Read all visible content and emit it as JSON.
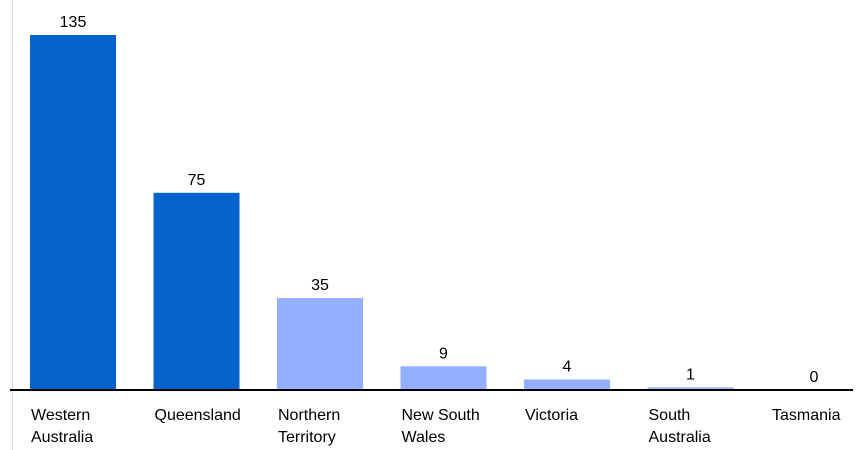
{
  "chart_data": {
    "type": "bar",
    "categories": [
      [
        "Western",
        "Australia"
      ],
      [
        "Queensland"
      ],
      [
        "Northern",
        "Territory"
      ],
      [
        "New South",
        "Wales"
      ],
      [
        "Victoria"
      ],
      [
        "South",
        "Australia"
      ],
      [
        "Tasmania"
      ]
    ],
    "values": [
      135,
      75,
      35,
      9,
      4,
      1,
      0
    ],
    "data_labels": [
      "135",
      "75",
      "35",
      "9",
      "4",
      "1",
      "0"
    ],
    "bar_colors": [
      "#0563CC",
      "#0563CC",
      "#93AFFF",
      "#93AFFF",
      "#93AFFF",
      "#93AFFF",
      "#93AFFF"
    ],
    "title": "",
    "xlabel": "",
    "ylabel": "",
    "ylim": [
      0,
      135
    ],
    "grid": false,
    "legend": "none"
  }
}
